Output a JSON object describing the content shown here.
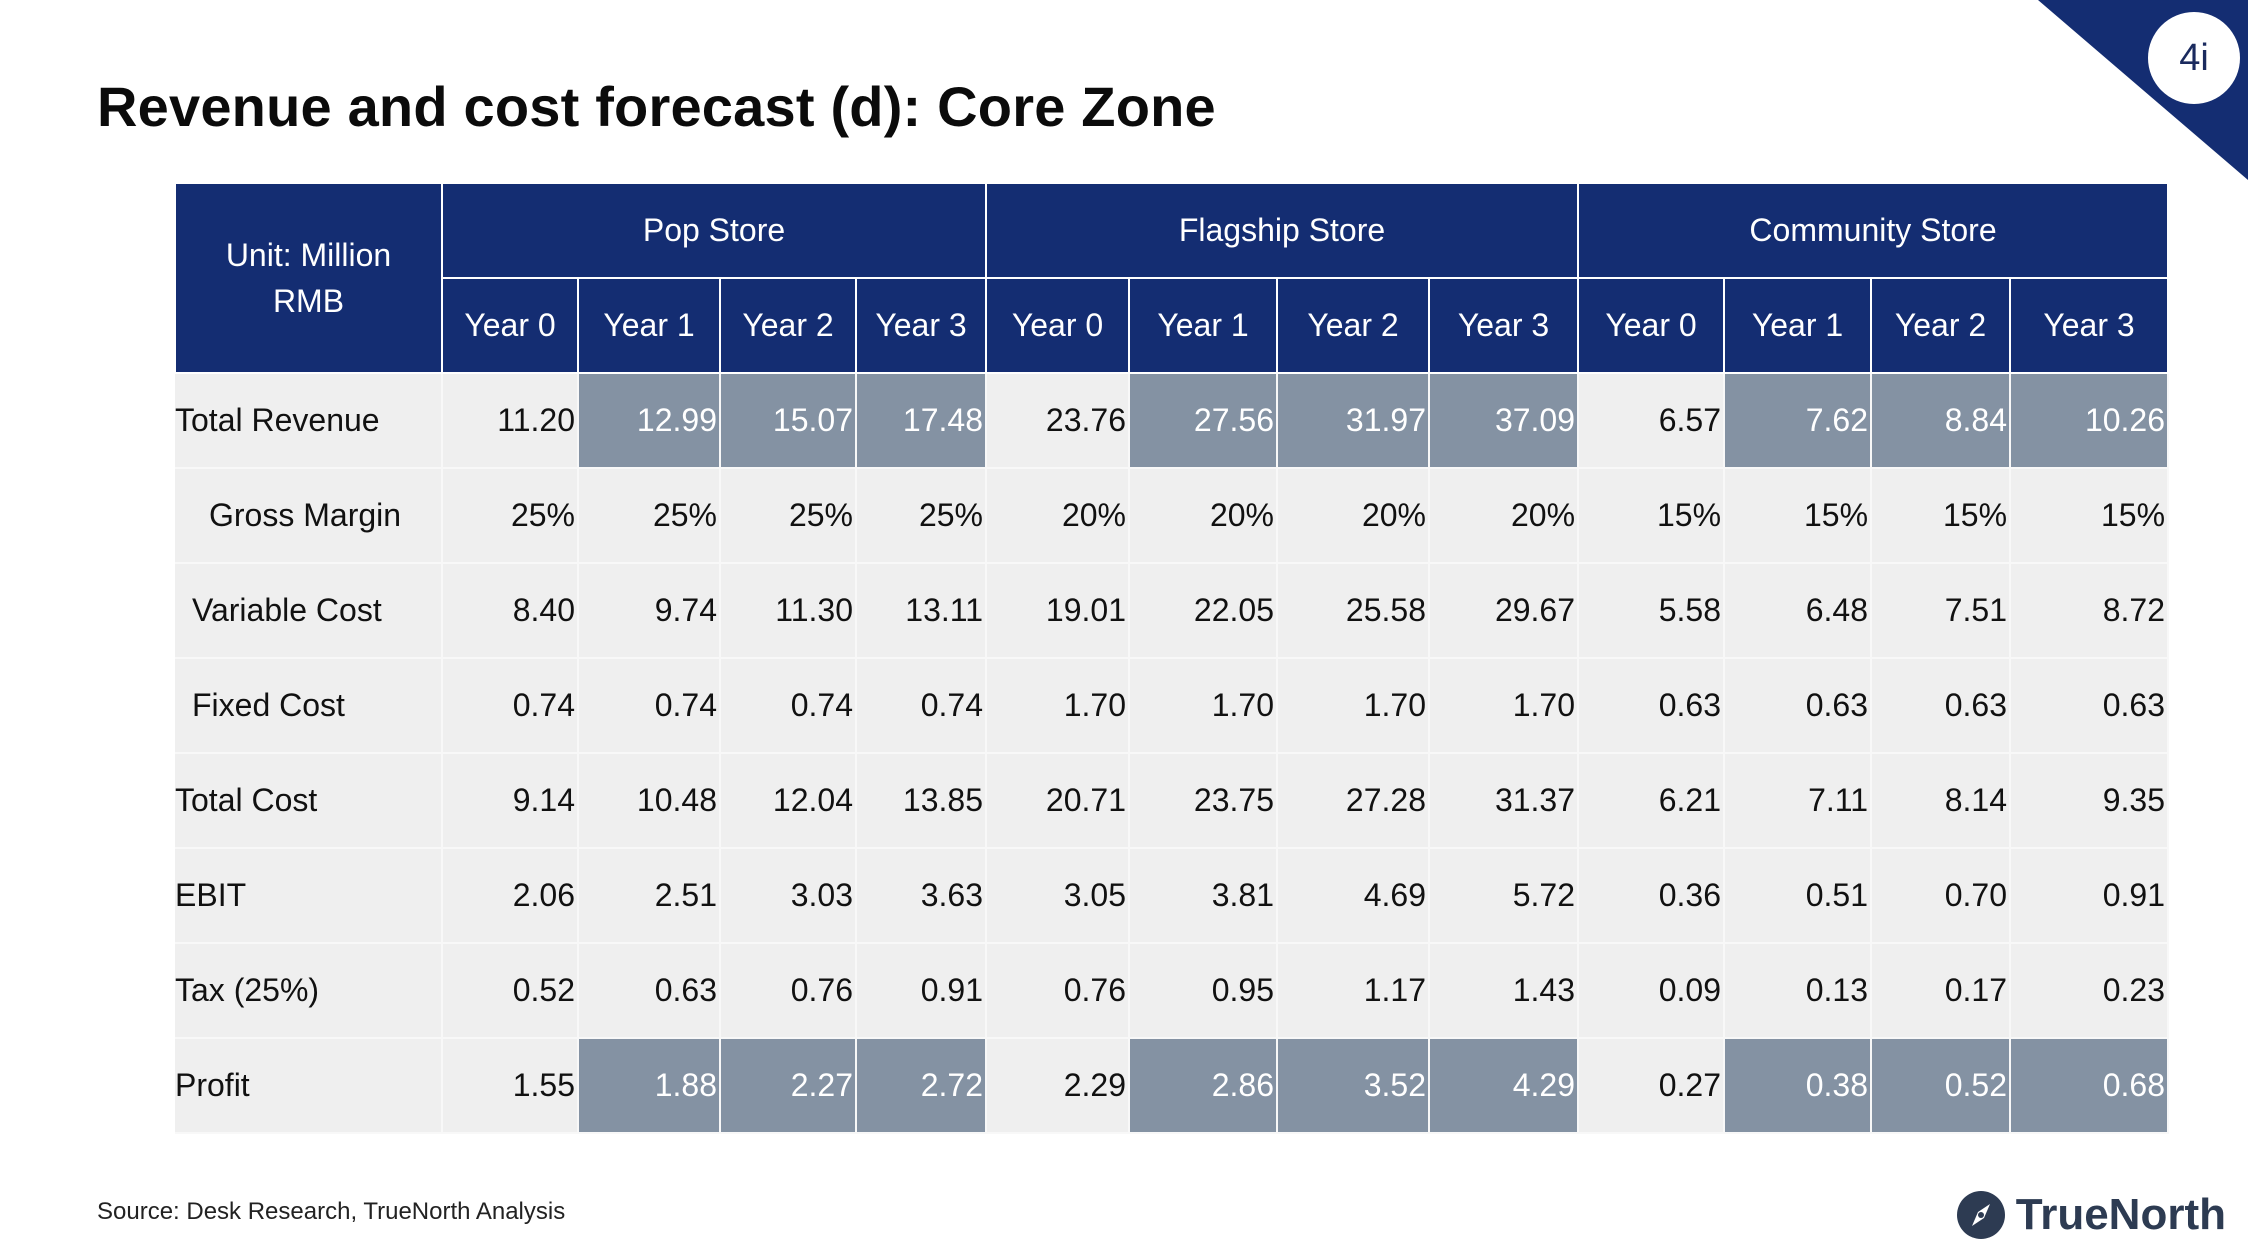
{
  "slide": {
    "number": "4i",
    "title": "Revenue and cost forecast (d): Core Zone",
    "source": "Source: Desk Research, TrueNorth Analysis",
    "logo_text": "TrueNorth"
  },
  "colors": {
    "header_bg": "#142d72",
    "highlight_bg": "#8492a3",
    "row_bg": "#efefef"
  },
  "table": {
    "unit_label": "Unit: Million RMB",
    "groups": [
      "Pop Store",
      "Flagship Store",
      "Community Store"
    ],
    "years": [
      "Year 0",
      "Year 1",
      "Year 2",
      "Year 3"
    ],
    "rows": [
      {
        "label": "Total Revenue",
        "values": [
          "11.20",
          "12.99",
          "15.07",
          "17.48",
          "23.76",
          "27.56",
          "31.97",
          "37.09",
          "6.57",
          "7.62",
          "8.84",
          "10.26"
        ]
      },
      {
        "label": "Gross Margin",
        "values": [
          "25%",
          "25%",
          "25%",
          "25%",
          "20%",
          "20%",
          "20%",
          "20%",
          "15%",
          "15%",
          "15%",
          "15%"
        ]
      },
      {
        "label": "Variable Cost",
        "values": [
          "8.40",
          "9.74",
          "11.30",
          "13.11",
          "19.01",
          "22.05",
          "25.58",
          "29.67",
          "5.58",
          "6.48",
          "7.51",
          "8.72"
        ]
      },
      {
        "label": "Fixed Cost",
        "values": [
          "0.74",
          "0.74",
          "0.74",
          "0.74",
          "1.70",
          "1.70",
          "1.70",
          "1.70",
          "0.63",
          "0.63",
          "0.63",
          "0.63"
        ]
      },
      {
        "label": "Total Cost",
        "values": [
          "9.14",
          "10.48",
          "12.04",
          "13.85",
          "20.71",
          "23.75",
          "27.28",
          "31.37",
          "6.21",
          "7.11",
          "8.14",
          "9.35"
        ]
      },
      {
        "label": "EBIT",
        "values": [
          "2.06",
          "2.51",
          "3.03",
          "3.63",
          "3.05",
          "3.81",
          "4.69",
          "5.72",
          "0.36",
          "0.51",
          "0.70",
          "0.91"
        ]
      },
      {
        "label": "Tax (25%)",
        "values": [
          "0.52",
          "0.63",
          "0.76",
          "0.91",
          "0.76",
          "0.95",
          "1.17",
          "1.43",
          "0.09",
          "0.13",
          "0.17",
          "0.23"
        ]
      },
      {
        "label": "Profit",
        "values": [
          "1.55",
          "1.88",
          "2.27",
          "2.72",
          "2.29",
          "2.86",
          "3.52",
          "4.29",
          "0.27",
          "0.38",
          "0.52",
          "0.68"
        ]
      }
    ]
  }
}
